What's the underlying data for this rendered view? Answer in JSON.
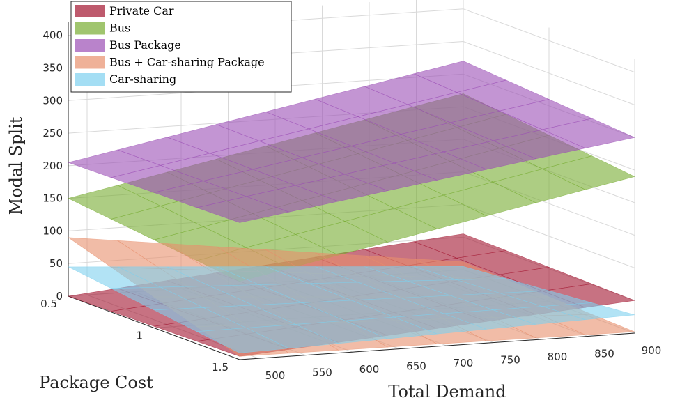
{
  "chart_data": {
    "type": "surface3d",
    "xlabel": "Total Demand",
    "ylabel": "Package Cost",
    "zlabel": "Modal Split",
    "x_ticks": [
      500,
      550,
      600,
      650,
      700,
      750,
      800,
      850,
      900
    ],
    "y_ticks": [
      0.5,
      1,
      1.5
    ],
    "z_ticks": [
      0,
      50,
      100,
      150,
      200,
      250,
      300,
      350,
      400
    ],
    "xlim": [
      480,
      900
    ],
    "ylim": [
      0.5,
      1.5
    ],
    "zlim": [
      0,
      420
    ],
    "grid": true,
    "legend_position": "top-left",
    "series": [
      {
        "name": "Private Car",
        "color": "#a2142f",
        "corners": {
          "x_min_y_min": 0,
          "x_max_y_min": 55,
          "x_min_y_max": 5,
          "x_max_y_max": 50
        }
      },
      {
        "name": "Bus",
        "color": "#77ac30",
        "corners": {
          "x_min_y_min": 150,
          "x_max_y_min": 270,
          "x_min_y_max": 120,
          "x_max_y_max": 240
        }
      },
      {
        "name": "Bus Package",
        "color": "#9b4fb5",
        "corners": {
          "x_min_y_min": 205,
          "x_max_y_min": 320,
          "x_min_y_max": 210,
          "x_max_y_max": 300
        }
      },
      {
        "name": "Bus + Car-sharing Package",
        "color": "#e8906c",
        "corners": {
          "x_min_y_min": 90,
          "x_max_y_min": 12,
          "x_min_y_max": 5,
          "x_max_y_max": 2
        }
      },
      {
        "name": "Car-sharing",
        "color": "#7ed0ef",
        "corners": {
          "x_min_y_min": 45,
          "x_max_y_min": 5,
          "x_min_y_max": 10,
          "x_max_y_max": 28
        }
      }
    ]
  }
}
